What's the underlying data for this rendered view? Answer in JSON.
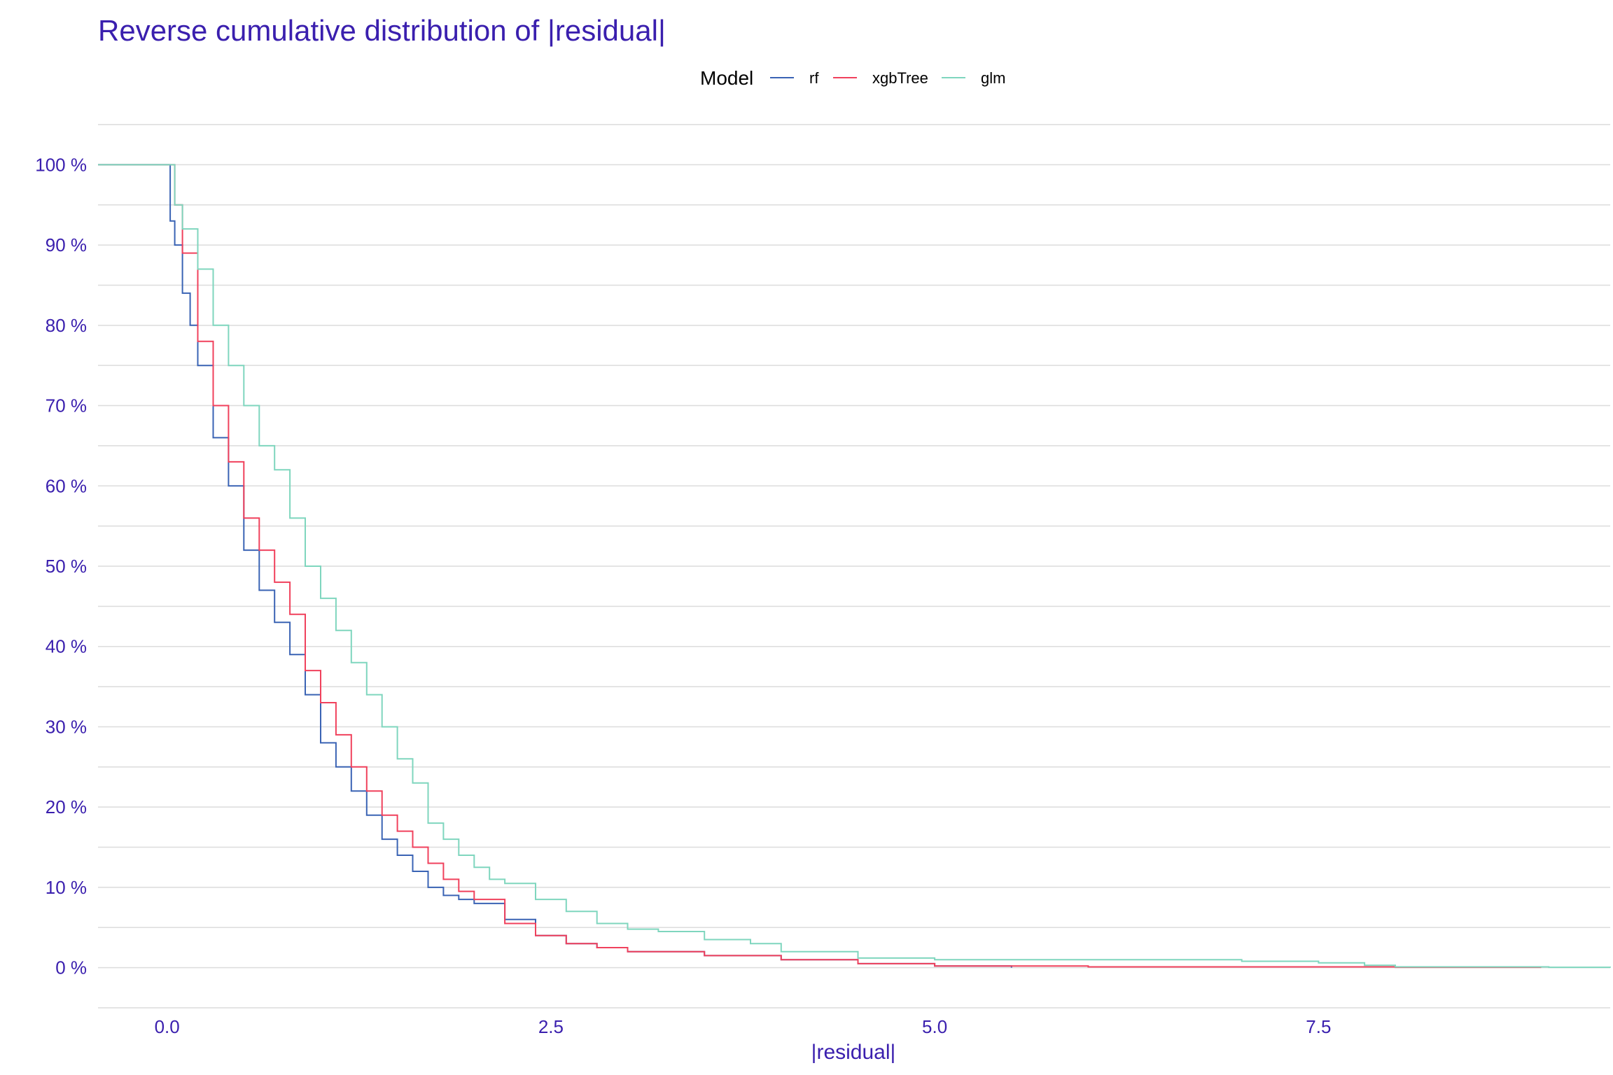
{
  "chart_data": {
    "type": "line",
    "title": "Reverse cumulative distribution of |residual|",
    "xlabel": "|residual|",
    "ylabel": "",
    "xlim": [
      -0.45,
      9.4
    ],
    "ylim": [
      -0.05,
      1.05
    ],
    "x_ticks": [
      0.0,
      2.5,
      5.0,
      7.5
    ],
    "x_tick_labels": [
      "0.0",
      "2.5",
      "5.0",
      "7.5"
    ],
    "y_ticks": [
      0,
      0.1,
      0.2,
      0.3,
      0.4,
      0.5,
      0.6,
      0.7,
      0.8,
      0.9,
      1.0
    ],
    "y_tick_labels": [
      "0 %",
      "10 %",
      "20 %",
      "30 %",
      "40 %",
      "50 %",
      "60 %",
      "70 %",
      "80 %",
      "90 %",
      "100 %"
    ],
    "grid": true,
    "legend": {
      "title": "Model",
      "position": "top"
    },
    "colors": {
      "text": "#3a1fae",
      "grid": "#dcdcdc",
      "rf": "#3a63b4",
      "xgbTree": "#f0415c",
      "glm": "#7fd6be"
    },
    "series": [
      {
        "name": "rf",
        "x": [
          -0.45,
          0.0,
          0.02,
          0.05,
          0.1,
          0.15,
          0.2,
          0.3,
          0.4,
          0.5,
          0.6,
          0.7,
          0.8,
          0.9,
          1.0,
          1.1,
          1.2,
          1.3,
          1.4,
          1.5,
          1.6,
          1.7,
          1.8,
          1.9,
          2.0,
          2.2,
          2.4,
          2.6,
          2.8,
          3.0,
          3.5,
          4.0,
          4.5,
          5.0,
          5.5
        ],
        "y": [
          1.0,
          1.0,
          0.93,
          0.9,
          0.84,
          0.8,
          0.75,
          0.66,
          0.6,
          0.52,
          0.47,
          0.43,
          0.39,
          0.34,
          0.28,
          0.25,
          0.22,
          0.19,
          0.16,
          0.14,
          0.12,
          0.1,
          0.09,
          0.085,
          0.08,
          0.06,
          0.04,
          0.03,
          0.025,
          0.02,
          0.015,
          0.01,
          0.005,
          0.002,
          0.0
        ]
      },
      {
        "name": "xgbTree",
        "x": [
          -0.45,
          0.0,
          0.05,
          0.1,
          0.2,
          0.3,
          0.4,
          0.5,
          0.6,
          0.7,
          0.8,
          0.9,
          1.0,
          1.1,
          1.2,
          1.3,
          1.4,
          1.5,
          1.6,
          1.7,
          1.8,
          1.9,
          2.0,
          2.2,
          2.4,
          2.6,
          2.8,
          3.0,
          3.5,
          4.0,
          4.5,
          5.0,
          6.0,
          7.0,
          8.0,
          8.95
        ],
        "y": [
          1.0,
          1.0,
          0.95,
          0.89,
          0.78,
          0.7,
          0.63,
          0.56,
          0.52,
          0.48,
          0.44,
          0.37,
          0.33,
          0.29,
          0.25,
          0.22,
          0.19,
          0.17,
          0.15,
          0.13,
          0.11,
          0.095,
          0.085,
          0.055,
          0.04,
          0.03,
          0.025,
          0.02,
          0.015,
          0.01,
          0.005,
          0.002,
          0.001,
          0.001,
          0.0005,
          0.0
        ]
      },
      {
        "name": "glm",
        "x": [
          -0.45,
          0.0,
          0.05,
          0.1,
          0.2,
          0.3,
          0.4,
          0.5,
          0.6,
          0.7,
          0.8,
          0.9,
          1.0,
          1.1,
          1.2,
          1.3,
          1.4,
          1.5,
          1.6,
          1.7,
          1.8,
          1.9,
          2.0,
          2.1,
          2.2,
          2.4,
          2.6,
          2.8,
          3.0,
          3.2,
          3.5,
          3.8,
          4.0,
          4.5,
          5.0,
          6.0,
          7.0,
          7.5,
          7.8,
          8.0,
          9.0,
          9.4
        ],
        "y": [
          1.0,
          1.0,
          0.95,
          0.92,
          0.87,
          0.8,
          0.75,
          0.7,
          0.65,
          0.62,
          0.56,
          0.5,
          0.46,
          0.42,
          0.38,
          0.34,
          0.3,
          0.26,
          0.23,
          0.18,
          0.16,
          0.14,
          0.125,
          0.11,
          0.105,
          0.085,
          0.07,
          0.055,
          0.048,
          0.045,
          0.035,
          0.03,
          0.02,
          0.012,
          0.01,
          0.01,
          0.008,
          0.006,
          0.003,
          0.001,
          0.0005,
          0.0
        ]
      }
    ]
  }
}
